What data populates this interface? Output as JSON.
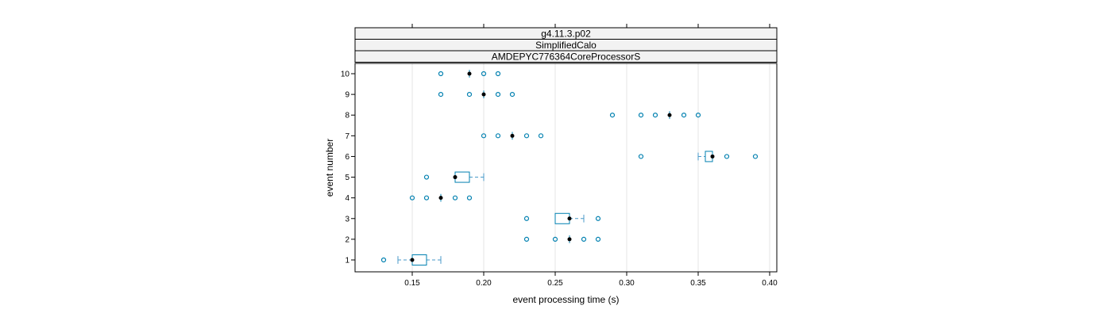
{
  "chart_data": {
    "type": "box",
    "strips": [
      "g4.11.3.p02",
      "SimplifiedCalo",
      "AMDEPYC776364CoreProcessorS"
    ],
    "xlabel": "event processing time (s)",
    "ylabel": "event number",
    "xlim": [
      0.11,
      0.405
    ],
    "x_ticks": [
      0.15,
      0.2,
      0.25,
      0.3,
      0.35,
      0.4
    ],
    "x_tick_labels": [
      "0.15",
      "0.20",
      "0.25",
      "0.30",
      "0.35",
      "0.40"
    ],
    "y_categories": [
      "1",
      "2",
      "3",
      "4",
      "5",
      "6",
      "7",
      "8",
      "9",
      "10"
    ],
    "grid": true,
    "colors": {
      "box": "#0080b0",
      "whisker": "#4a9ac9",
      "outlier": "#0080b0",
      "median": "#000000",
      "strip": "#f2f2f2"
    },
    "boxes": [
      {
        "event": "1",
        "median": 0.15,
        "q1": 0.15,
        "q3": 0.16,
        "whisker_low": 0.14,
        "whisker_high": 0.17,
        "outliers": [
          0.13
        ]
      },
      {
        "event": "2",
        "median": 0.26,
        "q1": 0.26,
        "q3": 0.26,
        "whisker_low": 0.26,
        "whisker_high": 0.26,
        "outliers": [
          0.23,
          0.25,
          0.27,
          0.28
        ]
      },
      {
        "event": "3",
        "median": 0.26,
        "q1": 0.25,
        "q3": 0.26,
        "whisker_low": 0.25,
        "whisker_high": 0.27,
        "outliers": [
          0.23,
          0.28
        ]
      },
      {
        "event": "4",
        "median": 0.17,
        "q1": 0.17,
        "q3": 0.17,
        "whisker_low": 0.17,
        "whisker_high": 0.17,
        "outliers": [
          0.15,
          0.16,
          0.18,
          0.19
        ]
      },
      {
        "event": "5",
        "median": 0.18,
        "q1": 0.18,
        "q3": 0.19,
        "whisker_low": 0.18,
        "whisker_high": 0.2,
        "outliers": [
          0.16
        ]
      },
      {
        "event": "6",
        "median": 0.36,
        "q1": 0.355,
        "q3": 0.36,
        "whisker_low": 0.35,
        "whisker_high": 0.36,
        "outliers": [
          0.31,
          0.37,
          0.39
        ]
      },
      {
        "event": "7",
        "median": 0.22,
        "q1": 0.22,
        "q3": 0.22,
        "whisker_low": 0.22,
        "whisker_high": 0.22,
        "outliers": [
          0.2,
          0.21,
          0.23,
          0.24
        ]
      },
      {
        "event": "8",
        "median": 0.33,
        "q1": 0.33,
        "q3": 0.33,
        "whisker_low": 0.33,
        "whisker_high": 0.33,
        "outliers": [
          0.29,
          0.31,
          0.32,
          0.34,
          0.35
        ]
      },
      {
        "event": "9",
        "median": 0.2,
        "q1": 0.2,
        "q3": 0.2,
        "whisker_low": 0.2,
        "whisker_high": 0.2,
        "outliers": [
          0.17,
          0.19,
          0.21,
          0.22
        ]
      },
      {
        "event": "10",
        "median": 0.19,
        "q1": 0.19,
        "q3": 0.19,
        "whisker_low": 0.19,
        "whisker_high": 0.19,
        "outliers": [
          0.17,
          0.2,
          0.21
        ]
      }
    ]
  }
}
